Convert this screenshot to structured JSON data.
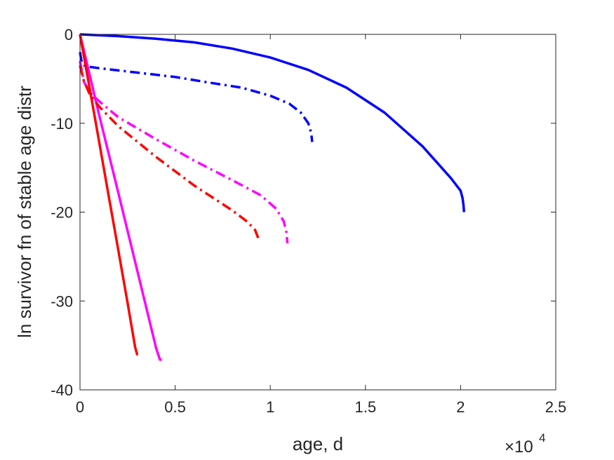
{
  "chart_data": {
    "type": "line",
    "xlabel": "age, d",
    "ylabel": "ln survivor fn of stable age distr",
    "xlim": [
      0,
      25000
    ],
    "ylim": [
      -40,
      0
    ],
    "x_exponent": "4",
    "x_exponent_prefix": "×10",
    "xticks": [
      0,
      5000,
      10000,
      15000,
      20000,
      25000
    ],
    "xtick_labels": [
      "0",
      "0.5",
      "1",
      "1.5",
      "2",
      "2.5"
    ],
    "yticks": [
      0,
      -10,
      -20,
      -30,
      -40
    ],
    "ytick_labels": [
      "0",
      "-10",
      "-20",
      "-30",
      "-40"
    ],
    "grid": false,
    "legend": "none",
    "series": [
      {
        "color": "#0000ff",
        "style": "solid",
        "x": [
          0,
          2000,
          4000,
          6000,
          8000,
          10000,
          12000,
          14000,
          16000,
          18000,
          19500,
          20000,
          20100,
          20150,
          20180
        ],
        "y": [
          0,
          -0.2,
          -0.5,
          -0.9,
          -1.6,
          -2.6,
          -4.0,
          -6.0,
          -8.8,
          -12.6,
          -16.2,
          -17.6,
          -18.4,
          -19.2,
          -20.0
        ]
      },
      {
        "color": "#0000ff",
        "style": "dashdot",
        "x": [
          0,
          100,
          300,
          1000,
          3000,
          5000,
          7000,
          8500,
          10000,
          11000,
          11600,
          12000,
          12150,
          12200
        ],
        "y": [
          -2.0,
          -3.3,
          -3.6,
          -3.8,
          -4.3,
          -4.8,
          -5.5,
          -6.0,
          -6.9,
          -7.8,
          -8.8,
          -10.0,
          -11.1,
          -12.1
        ]
      },
      {
        "color": "#ff00ff",
        "style": "solid",
        "x": [
          0,
          500,
          1000,
          2000,
          3000,
          4000,
          4200,
          4300
        ],
        "y": [
          0,
          -4.5,
          -9.0,
          -17.7,
          -26.5,
          -35.3,
          -36.6,
          -36.6
        ]
      },
      {
        "color": "#ff00ff",
        "style": "dashdot",
        "x": [
          0,
          200,
          500,
          1000,
          2000,
          4000,
          6000,
          8000,
          9500,
          10300,
          10700,
          10850,
          10900
        ],
        "y": [
          -3.0,
          -5.3,
          -6.5,
          -7.5,
          -9.3,
          -11.8,
          -14.2,
          -16.4,
          -18.1,
          -19.6,
          -21.0,
          -22.3,
          -23.5
        ]
      },
      {
        "color": "#ff0000",
        "style": "solid",
        "x": [
          0,
          500,
          1000,
          1500,
          2000,
          2500,
          2900,
          3000,
          3050
        ],
        "y": [
          0,
          -6.0,
          -12.0,
          -18.1,
          -24.1,
          -30.2,
          -35.2,
          -36.0,
          -36.0
        ]
      },
      {
        "color": "#ff0000",
        "style": "dashdot",
        "x": [
          0,
          200,
          500,
          1000,
          2000,
          4000,
          6000,
          8000,
          8800,
          9200,
          9400
        ],
        "y": [
          -3.5,
          -5.2,
          -6.7,
          -8.1,
          -10.3,
          -13.8,
          -17.0,
          -19.8,
          -21.1,
          -22.0,
          -23.1
        ]
      }
    ]
  }
}
